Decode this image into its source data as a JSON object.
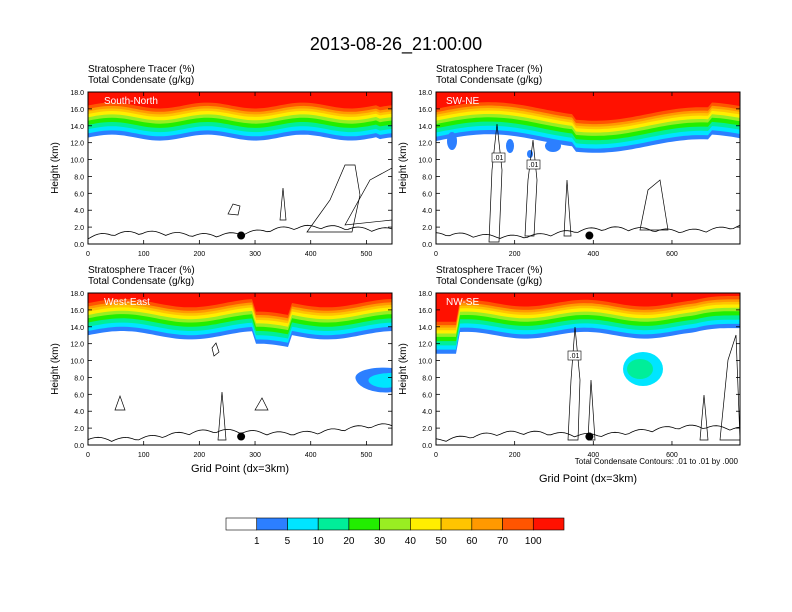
{
  "page_title": "2013-08-26_21:00:00",
  "footnote": "Total Condensate Contours: .01 to .01 by .000",
  "chart_data": [
    {
      "type": "heatmap",
      "panel_label": "South-North",
      "title_line1": "Stratosphere Tracer   (%)",
      "title_line2": "Total Condensate   (g/kg)",
      "ylabel": "Height (km)",
      "xlabel": "",
      "xlim": [
        0,
        546
      ],
      "ylim": [
        0,
        18
      ],
      "xticks": [
        0,
        100,
        200,
        300,
        400,
        500
      ],
      "yticks": [
        "0.0",
        "2.0",
        "4.0",
        "6.0",
        "8.0",
        "10.0",
        "12.0",
        "14.0",
        "16.0",
        "18.0"
      ],
      "marker_x": 275,
      "marker_y": 1.0,
      "tracer_band_base_km": 12.6,
      "tracer_band_top_km": 16.2,
      "contour_labels": []
    },
    {
      "type": "heatmap",
      "panel_label": "SW-NE",
      "title_line1": "Stratosphere Tracer   (%)",
      "title_line2": "Total Condensate   (g/kg)",
      "ylabel": "Height (km)",
      "xlabel": "",
      "xlim": [
        0,
        773
      ],
      "ylim": [
        0,
        18
      ],
      "xticks": [
        0,
        200,
        400,
        600
      ],
      "yticks": [
        "0.0",
        "2.0",
        "4.0",
        "6.0",
        "8.0",
        "10.0",
        "12.0",
        "14.0",
        "16.0",
        "18.0"
      ],
      "marker_x": 390,
      "marker_y": 1.0,
      "tracer_band_base_km": 11.2,
      "tracer_band_top_km": 16.2,
      "contour_labels": [
        ".01",
        ".01"
      ]
    },
    {
      "type": "heatmap",
      "panel_label": "West-East",
      "title_line1": "Stratosphere Tracer   (%)",
      "title_line2": "Total Condensate   (g/kg)",
      "ylabel": "Height (km)",
      "xlabel": "Grid Point (dx=3km)",
      "xlim": [
        0,
        546
      ],
      "ylim": [
        0,
        18
      ],
      "xticks": [
        0,
        100,
        200,
        300,
        400,
        500
      ],
      "yticks": [
        "0.0",
        "2.0",
        "4.0",
        "6.0",
        "8.0",
        "10.0",
        "12.0",
        "14.0",
        "16.0",
        "18.0"
      ],
      "marker_x": 275,
      "marker_y": 1.0,
      "tracer_band_base_km": 11.2,
      "tracer_band_top_km": 16.2,
      "contour_labels": []
    },
    {
      "type": "heatmap",
      "panel_label": "NW-SE",
      "title_line1": "Stratosphere Tracer   (%)",
      "title_line2": "Total Condensate   (g/kg)",
      "ylabel": "Height (km)",
      "xlabel": "Grid Point (dx=3km)",
      "xlim": [
        0,
        773
      ],
      "ylim": [
        0,
        18
      ],
      "xticks": [
        0,
        200,
        400,
        600
      ],
      "yticks": [
        "0.0",
        "2.0",
        "4.0",
        "6.0",
        "8.0",
        "10.0",
        "12.0",
        "14.0",
        "16.0",
        "18.0"
      ],
      "marker_x": 390,
      "marker_y": 1.0,
      "tracer_band_base_km": 10.5,
      "tracer_band_top_km": 16.2,
      "contour_labels": [
        ".01"
      ]
    }
  ],
  "colorbar": {
    "labels": [
      "1",
      "5",
      "10",
      "20",
      "30",
      "40",
      "50",
      "60",
      "70",
      "100"
    ],
    "colors": [
      "#ffffff",
      "#2c7fff",
      "#00e5ff",
      "#00ee99",
      "#22ee00",
      "#99ee22",
      "#ffee00",
      "#ffc400",
      "#ff9900",
      "#ff5500",
      "#ff1100"
    ]
  }
}
